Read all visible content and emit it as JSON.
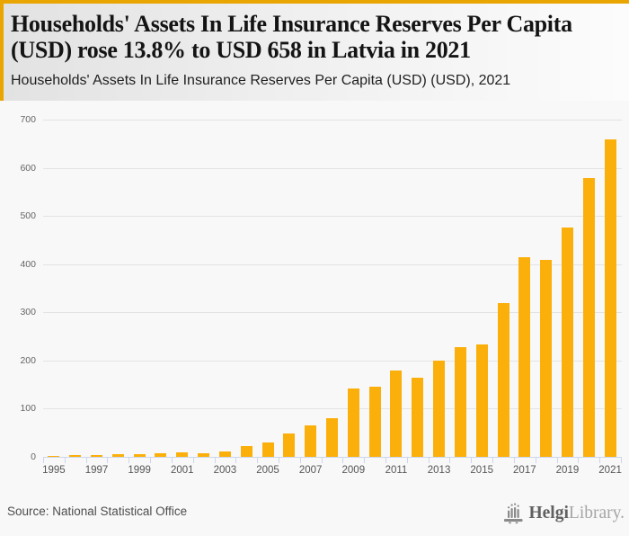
{
  "header": {
    "title": "Households' Assets In Life Insurance Reserves Per Capita (USD) rose 13.8% to USD 658 in Latvia in 2021",
    "subtitle": "Households' Assets In Life Insurance Reserves Per Capita (USD) (USD), 2021"
  },
  "chart_data": {
    "type": "bar",
    "title": "Households' Assets In Life Insurance Reserves Per Capita (USD) (USD), 2021",
    "categories": [
      "1995",
      "1996",
      "1997",
      "1998",
      "1999",
      "2000",
      "2001",
      "2002",
      "2003",
      "2004",
      "2005",
      "2006",
      "2007",
      "2008",
      "2009",
      "2010",
      "2011",
      "2012",
      "2013",
      "2014",
      "2015",
      "2016",
      "2017",
      "2018",
      "2019",
      "2020",
      "2021"
    ],
    "values": [
      1,
      3,
      3,
      5,
      5,
      8,
      9,
      8,
      12,
      22,
      30,
      48,
      65,
      81,
      142,
      146,
      179,
      165,
      200,
      228,
      233,
      319,
      415,
      408,
      476,
      578,
      658
    ],
    "xlabel": "",
    "ylabel": "",
    "ylim": [
      0,
      700
    ],
    "yticks": [
      0,
      100,
      200,
      300,
      400,
      500,
      600,
      700
    ],
    "xtick_labels": [
      "1995",
      "1997",
      "1999",
      "2001",
      "2003",
      "2005",
      "2007",
      "2009",
      "2011",
      "2013",
      "2015",
      "2017",
      "2019",
      "2021"
    ],
    "grid": true,
    "legend": false,
    "bar_color": "#fbaf0b"
  },
  "footer": {
    "source": "Source: National Statistical Office",
    "logo": {
      "icon": "bar-chart-logo-icon",
      "brand_bold": "Helgi",
      "brand_light": "Library."
    }
  },
  "colors": {
    "accent_yellow": "#e9a602",
    "bar_orange": "#fbaf0b",
    "axis_line": "#ccd6eb",
    "gridline": "#e3e3e3",
    "page_bg": "#f8f8f8",
    "header_gradient_left": "#e2e2e2",
    "header_gradient_right": "#fcfcfc",
    "title_text": "#141414"
  }
}
